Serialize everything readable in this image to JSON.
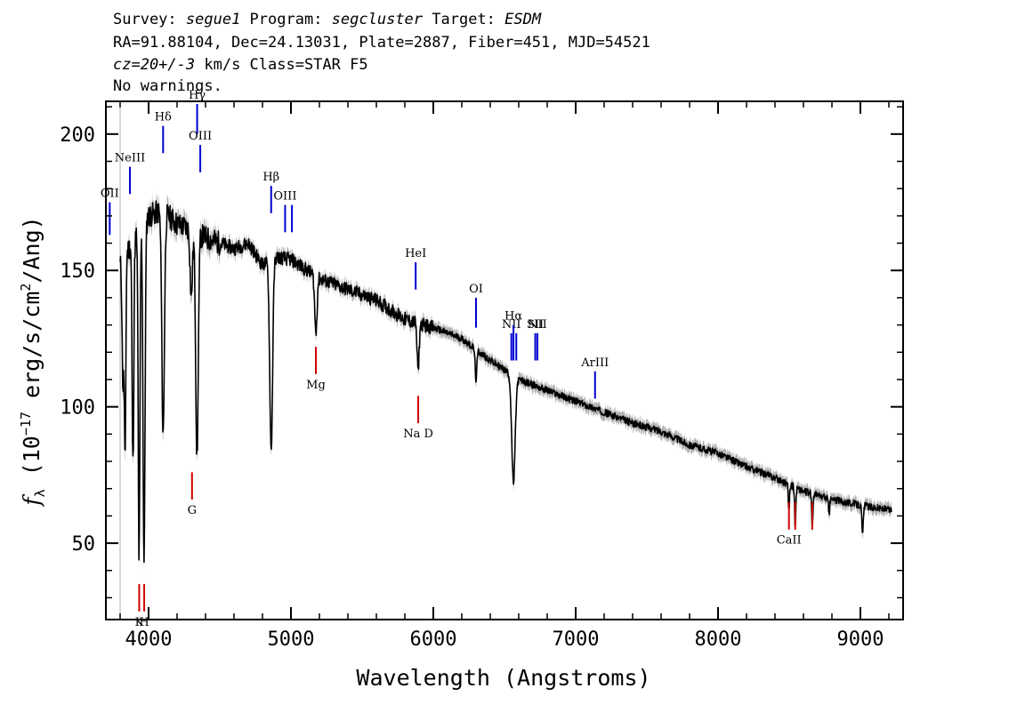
{
  "header": {
    "line1": {
      "survey_label": "Survey: ",
      "survey": "segue1",
      "program_label": " Program: ",
      "program": "segcluster",
      "target_label": " Target: ",
      "target": "ESDM"
    },
    "line2": "RA=91.88104, Dec=24.13031, Plate=2887, Fiber=451, MJD=54521",
    "line3": {
      "cz": "cz=20+/-3",
      "rest": " km/s Class=STAR F5"
    },
    "line4": "No warnings."
  },
  "chart_data": {
    "type": "line",
    "xlabel": "Wavelength (Angstroms)",
    "ylabel_parts": {
      "f": "f",
      "lambda": "λ",
      "open": " (10",
      "exp": "−17",
      "mid": " erg/s/cm",
      "sq": "2",
      "close": "/Ang)"
    },
    "xlim": [
      3700,
      9300
    ],
    "ylim": [
      22,
      212
    ],
    "x_ticks": [
      4000,
      5000,
      6000,
      7000,
      8000,
      9000
    ],
    "y_ticks": [
      50,
      100,
      150,
      200
    ],
    "continuum": [
      [
        3800,
        152
      ],
      [
        3900,
        162
      ],
      [
        4000,
        170
      ],
      [
        4100,
        172
      ],
      [
        4200,
        167
      ],
      [
        4300,
        165
      ],
      [
        4400,
        162
      ],
      [
        4500,
        160
      ],
      [
        4600,
        158
      ],
      [
        4700,
        160
      ],
      [
        4800,
        152
      ],
      [
        4900,
        155
      ],
      [
        5000,
        154
      ],
      [
        5200,
        147
      ],
      [
        5400,
        143
      ],
      [
        5600,
        139
      ],
      [
        5800,
        132
      ],
      [
        6000,
        129
      ],
      [
        6200,
        125
      ],
      [
        6400,
        117
      ],
      [
        6600,
        110
      ],
      [
        6800,
        106
      ],
      [
        7000,
        102
      ],
      [
        7200,
        98
      ],
      [
        7400,
        94
      ],
      [
        7600,
        91
      ],
      [
        7800,
        86
      ],
      [
        8000,
        83
      ],
      [
        8200,
        78
      ],
      [
        8400,
        74
      ],
      [
        8600,
        69
      ],
      [
        8800,
        66
      ],
      [
        9000,
        64
      ],
      [
        9220,
        62
      ]
    ],
    "absorption": [
      [
        3820,
        108,
        6
      ],
      [
        3835,
        80,
        5
      ],
      [
        3890,
        79,
        6
      ],
      [
        3933,
        44,
        6
      ],
      [
        3968,
        43,
        7
      ],
      [
        4102,
        90,
        9
      ],
      [
        4300,
        140,
        8
      ],
      [
        4340,
        82,
        9
      ],
      [
        4861,
        84,
        10
      ],
      [
        5175,
        127,
        8
      ],
      [
        5893,
        113,
        7
      ],
      [
        6300,
        110,
        6
      ],
      [
        6563,
        72,
        12
      ],
      [
        8498,
        62,
        4
      ],
      [
        8542,
        56,
        4
      ],
      [
        8662,
        55,
        4
      ],
      [
        8780,
        60,
        4
      ],
      [
        9015,
        53,
        5
      ]
    ],
    "emission_lines": [
      {
        "label": "OII",
        "wave": 3727,
        "y_top": 175,
        "y_bottom": 163
      },
      {
        "label": "NeIII",
        "wave": 3869,
        "y_top": 188,
        "y_bottom": 178
      },
      {
        "label": "Hδ",
        "wave": 4102,
        "y_top": 203,
        "y_bottom": 193
      },
      {
        "label": "Hγ",
        "wave": 4341,
        "y_top": 211,
        "y_bottom": 200
      },
      {
        "label": "OIII",
        "wave": 4363,
        "y_top": 196,
        "y_bottom": 186
      },
      {
        "label": "Hβ",
        "wave": 4861,
        "y_top": 181,
        "y_bottom": 171
      },
      {
        "label": "OIII",
        "wave": 4959,
        "y_top": 174,
        "y_bottom": 164
      },
      {
        "label": "",
        "wave": 5007,
        "y_top": 174,
        "y_bottom": 164
      },
      {
        "label": "HeI",
        "wave": 5876,
        "y_top": 153,
        "y_bottom": 143
      },
      {
        "label": "OI",
        "wave": 6300,
        "y_top": 140,
        "y_bottom": 129
      },
      {
        "label": "NII",
        "wave": 6548,
        "y_top": 127,
        "y_bottom": 117
      },
      {
        "label": "Hα",
        "wave": 6563,
        "y_top": 130,
        "y_bottom": 117
      },
      {
        "label": "",
        "wave": 6583,
        "y_top": 127,
        "y_bottom": 117
      },
      {
        "label": "SII",
        "wave": 6716,
        "y_top": 127,
        "y_bottom": 117
      },
      {
        "label": "NII",
        "wave": 6731,
        "y_top": 127,
        "y_bottom": 117
      },
      {
        "label": "ArIII",
        "wave": 7136,
        "y_top": 113,
        "y_bottom": 103
      }
    ],
    "absorption_lines": [
      {
        "label": "K",
        "wave": 3934,
        "y_top": 35,
        "y_bottom": 25
      },
      {
        "label": "H",
        "wave": 3969,
        "y_top": 35,
        "y_bottom": 25
      },
      {
        "label": "G",
        "wave": 4305,
        "y_top": 76,
        "y_bottom": 66
      },
      {
        "label": "Mg",
        "wave": 5175,
        "y_top": 122,
        "y_bottom": 112
      },
      {
        "label": "Na D",
        "wave": 5894,
        "y_top": 104,
        "y_bottom": 94
      },
      {
        "label": "CaII",
        "wave": 8498,
        "y_top": 65,
        "y_bottom": 55
      },
      {
        "label": "",
        "wave": 8542,
        "y_top": 65,
        "y_bottom": 55
      },
      {
        "label": "",
        "wave": 8662,
        "y_top": 65,
        "y_bottom": 55
      }
    ],
    "colors": {
      "flux": "#000000",
      "error": "#b0b0b0",
      "emission": "#0000d0",
      "absorption": "#d00000",
      "frame": "#000000"
    }
  }
}
